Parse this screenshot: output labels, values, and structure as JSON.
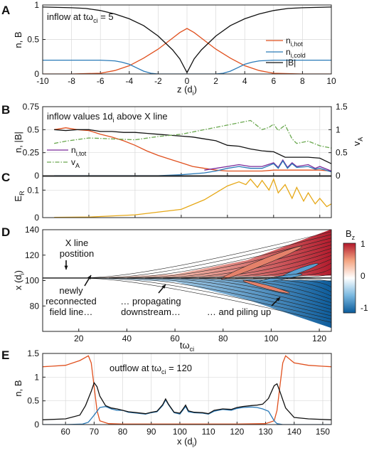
{
  "chart_data": [
    {
      "panel": "A",
      "type": "line",
      "annotation": "inflow at tω",
      "annotation_sub": "ci",
      "annotation_tail": " = 5",
      "xlabel": "z (d",
      "xlabel_sub": "i",
      "xlabel_tail": ")",
      "ylabel": "n, B",
      "xlim": [
        -10,
        10
      ],
      "ylim": [
        0,
        1
      ],
      "xticks": [
        "-10",
        "-8",
        "-6",
        "-4",
        "-2",
        "0",
        "2",
        "4",
        "6",
        "8",
        "10"
      ],
      "yticks": [
        "0",
        "0.5",
        "1"
      ],
      "grid": true,
      "legend_position": "right",
      "series": [
        {
          "name": "n",
          "name_sub": "i,hot",
          "color": "#e0501e",
          "x": [
            -10,
            -8,
            -6,
            -5,
            -4,
            -3,
            -2,
            -1,
            -0.5,
            0,
            0.5,
            1,
            2,
            3,
            4,
            5,
            6,
            8,
            10
          ],
          "y": [
            0,
            0,
            0.01,
            0.05,
            0.12,
            0.23,
            0.36,
            0.52,
            0.6,
            0.66,
            0.6,
            0.52,
            0.36,
            0.23,
            0.12,
            0.05,
            0.01,
            0,
            0
          ]
        },
        {
          "name": "n",
          "name_sub": "i,cold",
          "color": "#2a7ab8",
          "x": [
            -10,
            -7,
            -6,
            -5,
            -4.5,
            -4,
            -3.5,
            -3,
            -2.5,
            -2,
            2,
            2.5,
            3,
            3.5,
            4,
            4.5,
            5,
            6,
            7,
            10
          ],
          "y": [
            0.2,
            0.2,
            0.2,
            0.19,
            0.17,
            0.14,
            0.09,
            0.04,
            0.01,
            0,
            0,
            0.01,
            0.04,
            0.09,
            0.14,
            0.17,
            0.19,
            0.2,
            0.2,
            0.2
          ]
        },
        {
          "name": "|B|",
          "name_sub": "",
          "color": "#111111",
          "x": [
            -10,
            -8,
            -7,
            -6,
            -5,
            -4,
            -3,
            -2,
            -1,
            -0.5,
            -0.2,
            0,
            0.2,
            0.5,
            1,
            2,
            3,
            4,
            5,
            6,
            7,
            8,
            10
          ],
          "y": [
            0.97,
            0.96,
            0.95,
            0.92,
            0.87,
            0.8,
            0.7,
            0.55,
            0.35,
            0.22,
            0.1,
            0.02,
            0.1,
            0.22,
            0.35,
            0.55,
            0.7,
            0.8,
            0.87,
            0.92,
            0.95,
            0.96,
            0.97
          ]
        }
      ]
    },
    {
      "panel": "B",
      "type": "line",
      "annotation": "inflow values 1d",
      "annotation_sub": "i",
      "annotation_tail": " above X line",
      "ylabel": "n, |B|",
      "ylabel_right": "v",
      "ylabel_right_sub": "A",
      "xlim": [
        0,
        125
      ],
      "ylim": [
        0,
        0.75
      ],
      "ylim_right": [
        0,
        1.5
      ],
      "yticks": [
        "0",
        "0.25",
        "0.5",
        "0.75"
      ],
      "yticks_right": [
        "0",
        "0.5",
        "1",
        "1.5"
      ],
      "grid": true,
      "legend_position": "center-left",
      "series": [
        {
          "name": "",
          "color": "#e0501e",
          "axis": "left",
          "x": [
            5,
            10,
            15,
            20,
            25,
            30,
            35,
            40,
            45,
            50,
            55,
            60,
            65,
            70,
            75,
            80,
            85,
            90,
            95,
            100,
            105,
            110,
            115,
            120,
            125
          ],
          "y": [
            0.5,
            0.52,
            0.5,
            0.49,
            0.45,
            0.42,
            0.38,
            0.33,
            0.27,
            0.22,
            0.18,
            0.14,
            0.1,
            0.08,
            0.06,
            0.05,
            0.05,
            0.05,
            0.05,
            0.06,
            0.06,
            0.06,
            0.06,
            0.06,
            0.05
          ]
        },
        {
          "name": "",
          "color": "#111111",
          "axis": "left",
          "x": [
            5,
            10,
            15,
            20,
            25,
            30,
            35,
            40,
            45,
            50,
            55,
            60,
            65,
            70,
            75,
            80,
            85,
            90,
            95,
            100,
            105,
            110,
            115,
            120,
            125
          ],
          "y": [
            0.5,
            0.49,
            0.5,
            0.5,
            0.48,
            0.48,
            0.47,
            0.47,
            0.46,
            0.45,
            0.44,
            0.43,
            0.42,
            0.4,
            0.38,
            0.33,
            0.32,
            0.29,
            0.27,
            0.26,
            0.2,
            0.2,
            0.2,
            0.19,
            0.13
          ]
        },
        {
          "name": "n",
          "name_sub": "i,tot",
          "color": "#7a2a9a",
          "axis": "left",
          "x": [
            70,
            75,
            80,
            85,
            90,
            95,
            100,
            102,
            104,
            106,
            108,
            110,
            115,
            118,
            120,
            125
          ],
          "y": [
            0.06,
            0.08,
            0.1,
            0.12,
            0.1,
            0.1,
            0.14,
            0.09,
            0.17,
            0.09,
            0.14,
            0.1,
            0.12,
            0.08,
            0.1,
            0.05
          ]
        },
        {
          "name": "",
          "color": "#2a7ab8",
          "axis": "left",
          "x": [
            5,
            50,
            60,
            70,
            75,
            80,
            85,
            90,
            95,
            100,
            102,
            104,
            106,
            108,
            110,
            115,
            118,
            120,
            125
          ],
          "y": [
            0,
            0,
            0.01,
            0.03,
            0.05,
            0.08,
            0.1,
            0.08,
            0.08,
            0.13,
            0.08,
            0.16,
            0.08,
            0.13,
            0.09,
            0.1,
            0.07,
            0.08,
            0.04
          ]
        },
        {
          "name": "v",
          "name_sub": "A",
          "color": "#6aa84f",
          "axis": "right",
          "dashed": true,
          "x": [
            5,
            10,
            20,
            30,
            40,
            50,
            60,
            70,
            75,
            80,
            85,
            90,
            95,
            98,
            100,
            102,
            105,
            108,
            110,
            115,
            120,
            125
          ],
          "y": [
            0.7,
            0.75,
            0.82,
            0.8,
            0.78,
            0.85,
            0.9,
            1.0,
            1.05,
            1.1,
            1.15,
            1.2,
            1.0,
            1.05,
            1.12,
            0.98,
            1.1,
            0.8,
            0.7,
            0.75,
            0.65,
            0.6
          ]
        }
      ]
    },
    {
      "panel": "C",
      "type": "line",
      "ylabel": "E",
      "ylabel_sub": "R",
      "xlim": [
        0,
        125
      ],
      "ylim": [
        0,
        0.15
      ],
      "yticks": [
        "0",
        "0.1"
      ],
      "grid": true,
      "series": [
        {
          "name": "",
          "color": "#e6a817",
          "x": [
            5,
            20,
            40,
            60,
            70,
            75,
            80,
            85,
            88,
            90,
            93,
            95,
            98,
            100,
            102,
            105,
            108,
            110,
            113,
            115,
            118,
            120,
            123,
            125
          ],
          "y": [
            0.001,
            0.002,
            0.01,
            0.03,
            0.065,
            0.09,
            0.115,
            0.13,
            0.12,
            0.14,
            0.11,
            0.135,
            0.1,
            0.14,
            0.09,
            0.12,
            0.07,
            0.11,
            0.06,
            0.09,
            0.05,
            0.07,
            0.04,
            0.05
          ]
        }
      ]
    },
    {
      "panel": "D",
      "type": "heatmap",
      "xlabel": "tω",
      "xlabel_sub": "ci",
      "ylabel": "x (d",
      "ylabel_sub": "i",
      "ylabel_tail": ")",
      "xlim": [
        5,
        125
      ],
      "ylim": [
        60,
        140
      ],
      "xticks": [
        "20",
        "40",
        "60",
        "80",
        "100",
        "120"
      ],
      "yticks": [
        "80",
        "100",
        "120",
        "140"
      ],
      "colorbar_label": "B",
      "colorbar_label_sub": "z",
      "colorbar_ticks": [
        "1",
        "0",
        "-1"
      ],
      "colormap": [
        "#0a5a9a",
        "#7ab8e0",
        "#ffffff",
        "#f4a582",
        "#b2182b"
      ],
      "annotations": [
        "X line",
        "postition",
        "newly",
        "reconnected",
        "field line…",
        "… propagating",
        "downstream…",
        "… and piling up"
      ]
    },
    {
      "panel": "E",
      "type": "line",
      "annotation": "outflow at tω",
      "annotation_sub": "ci",
      "annotation_tail": " = 120",
      "xlabel": "x (d",
      "xlabel_sub": "i",
      "xlabel_tail": ")",
      "ylabel": "n, B",
      "xlim": [
        52,
        153
      ],
      "ylim": [
        0,
        1.5
      ],
      "xticks": [
        "60",
        "70",
        "80",
        "90",
        "100",
        "110",
        "120",
        "130",
        "140",
        "150"
      ],
      "yticks": [
        "0",
        "0.5",
        "1",
        "1.5"
      ],
      "grid": true,
      "series": [
        {
          "name": "",
          "color": "#e0501e",
          "x": [
            52,
            55,
            60,
            65,
            68,
            69,
            70,
            71,
            72,
            75,
            80,
            90,
            100,
            110,
            120,
            130,
            133,
            134,
            135,
            136,
            137,
            140,
            145,
            150,
            153
          ],
          "y": [
            1.22,
            1.23,
            1.25,
            1.35,
            1.45,
            1.3,
            0.8,
            0.3,
            0.08,
            0.02,
            0.01,
            0.01,
            0.01,
            0.01,
            0.01,
            0.02,
            0.08,
            0.3,
            0.8,
            1.3,
            1.45,
            1.3,
            1.25,
            1.23,
            1.22
          ]
        },
        {
          "name": "",
          "color": "#2a7ab8",
          "x": [
            52,
            60,
            66,
            68,
            70,
            72,
            74,
            76,
            78,
            80,
            82,
            85,
            88,
            90,
            92,
            94,
            95,
            96,
            98,
            100,
            101,
            102,
            103,
            105,
            108,
            110,
            112,
            115,
            118,
            120,
            122,
            125,
            127,
            129,
            131,
            132,
            133,
            134,
            136,
            140,
            153
          ],
          "y": [
            0,
            0,
            0.01,
            0.05,
            0.2,
            0.36,
            0.38,
            0.33,
            0.3,
            0.3,
            0.26,
            0.24,
            0.22,
            0.25,
            0.27,
            0.4,
            0.52,
            0.42,
            0.25,
            0.22,
            0.3,
            0.38,
            0.27,
            0.25,
            0.24,
            0.22,
            0.28,
            0.32,
            0.3,
            0.34,
            0.36,
            0.37,
            0.36,
            0.33,
            0.28,
            0.18,
            0.08,
            0.02,
            0,
            0,
            0
          ]
        },
        {
          "name": "",
          "color": "#111111",
          "x": [
            52,
            60,
            65,
            67,
            69,
            70,
            71,
            72,
            74,
            76,
            78,
            80,
            82,
            85,
            88,
            90,
            92,
            94,
            95,
            96,
            98,
            100,
            101,
            102,
            103,
            105,
            108,
            110,
            112,
            115,
            118,
            120,
            122,
            125,
            127,
            129,
            131,
            133,
            134,
            135,
            137,
            140,
            145,
            153
          ],
          "y": [
            0.1,
            0.12,
            0.2,
            0.4,
            0.7,
            0.88,
            0.8,
            0.6,
            0.4,
            0.35,
            0.33,
            0.3,
            0.27,
            0.25,
            0.23,
            0.26,
            0.28,
            0.42,
            0.54,
            0.43,
            0.26,
            0.24,
            0.32,
            0.41,
            0.29,
            0.26,
            0.25,
            0.23,
            0.3,
            0.33,
            0.32,
            0.36,
            0.38,
            0.4,
            0.41,
            0.43,
            0.55,
            0.82,
            0.86,
            0.7,
            0.35,
            0.15,
            0.12,
            0.1
          ]
        }
      ]
    }
  ]
}
